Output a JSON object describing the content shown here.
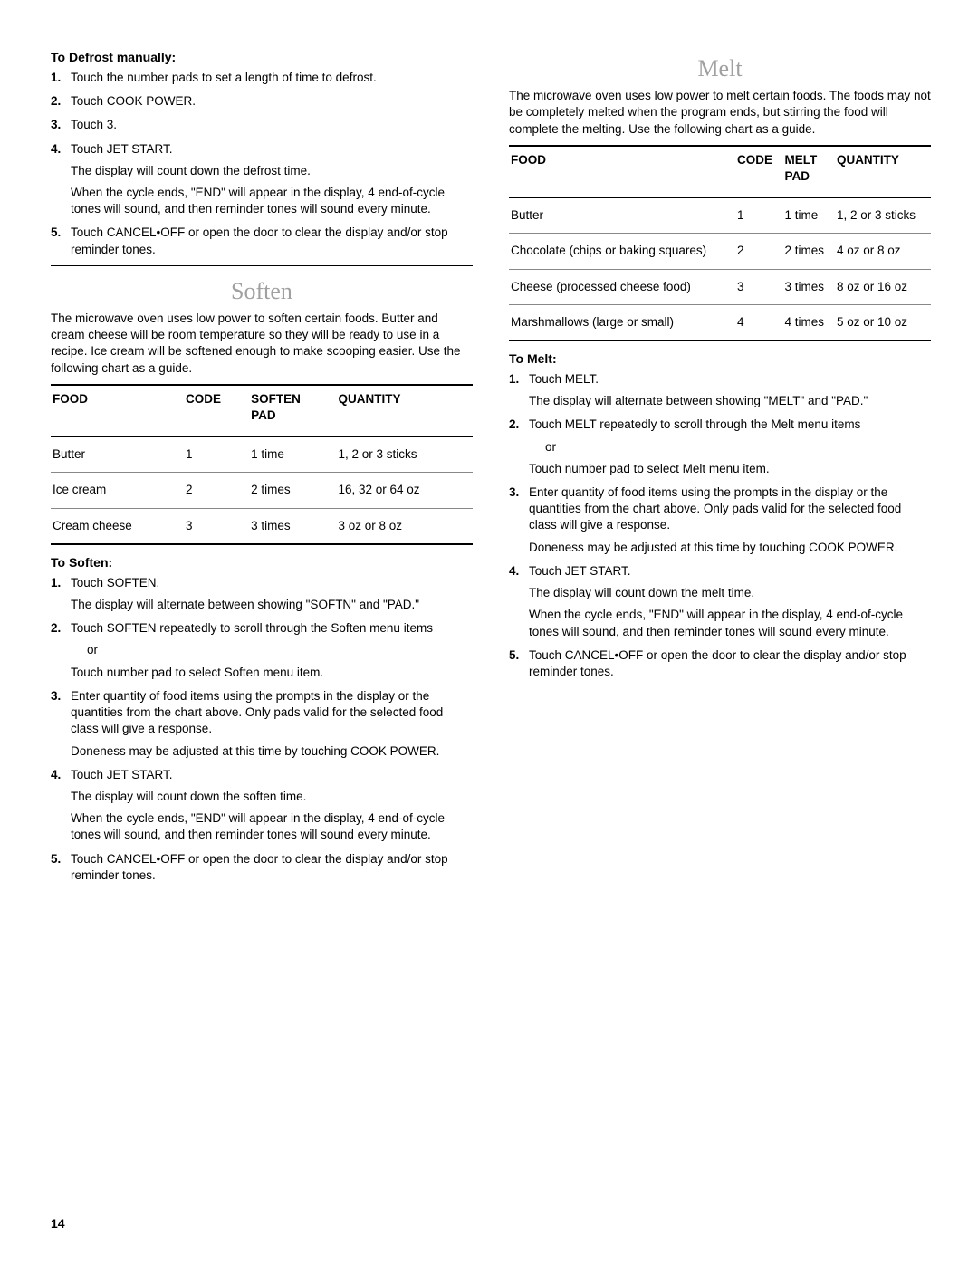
{
  "left": {
    "defrost": {
      "heading": "To Defrost manually:",
      "steps": [
        {
          "text": "Touch the number pads to set a length of time to defrost."
        },
        {
          "text": "Touch COOK POWER."
        },
        {
          "text": "Touch 3."
        },
        {
          "text": "Touch JET START.",
          "subs": [
            "The display will count down the defrost time.",
            "When the cycle ends, \"END\" will appear in the display, 4 end-of-cycle tones will sound, and then reminder tones will sound every minute."
          ]
        },
        {
          "text": "Touch CANCEL•OFF or open the door to clear the display and/or stop reminder tones."
        }
      ]
    },
    "soften": {
      "title": "Soften",
      "intro": "The microwave oven uses low power to soften certain foods. Butter and cream cheese will be room temperature so they will be ready to use in a recipe. Ice cream will be softened enough to make scooping easier. Use the following chart as a guide.",
      "table": {
        "headers": [
          "FOOD",
          "CODE",
          "SOFTEN PAD",
          "QUANTITY"
        ],
        "rows": [
          [
            "Butter",
            "1",
            "1 time",
            "1, 2 or 3 sticks"
          ],
          [
            "Ice cream",
            "2",
            "2 times",
            "16, 32 or 64 oz"
          ],
          [
            "Cream cheese",
            "3",
            "3 times",
            "3 oz or 8 oz"
          ]
        ]
      },
      "proc_heading": "To Soften:",
      "steps": [
        {
          "text": "Touch SOFTEN.",
          "subs": [
            "The display will alternate between showing \"SOFTN\" and \"PAD.\""
          ]
        },
        {
          "text": "Touch SOFTEN repeatedly to scroll through the Soften menu items",
          "or": "or",
          "subs": [
            "Touch number pad to select Soften menu item."
          ]
        },
        {
          "text": "Enter quantity of food items using the prompts in the display or the quantities from the chart above. Only pads valid for the selected food class will give a response.",
          "subs": [
            "Doneness may be adjusted at this time by touching COOK POWER."
          ]
        },
        {
          "text": "Touch JET START.",
          "subs": [
            "The display will count down the soften time.",
            "When the cycle ends, \"END\" will appear in the display, 4 end-of-cycle tones will sound, and then reminder tones will sound every minute."
          ]
        },
        {
          "text": "Touch CANCEL•OFF or open the door to clear the display and/or stop reminder tones."
        }
      ]
    }
  },
  "right": {
    "melt": {
      "title": "Melt",
      "intro": "The microwave oven uses low power to melt certain foods. The foods may not be completely melted when the program ends, but stirring the food will complete the melting. Use the following chart as a guide.",
      "table": {
        "headers": [
          "FOOD",
          "CODE",
          "MELT PAD",
          "QUANTITY"
        ],
        "rows": [
          [
            "Butter",
            "1",
            "1 time",
            "1, 2 or 3 sticks"
          ],
          [
            "Chocolate (chips or baking squares)",
            "2",
            "2 times",
            "4 oz or 8 oz"
          ],
          [
            "Cheese (processed cheese food)",
            "3",
            "3 times",
            "8 oz or 16 oz"
          ],
          [
            "Marshmallows (large or small)",
            "4",
            "4 times",
            "5 oz or 10 oz"
          ]
        ]
      },
      "proc_heading": "To Melt:",
      "steps": [
        {
          "text": "Touch MELT.",
          "subs": [
            "The display will alternate between showing \"MELT\" and \"PAD.\""
          ]
        },
        {
          "text": "Touch MELT repeatedly to scroll through the Melt menu items",
          "or": "or",
          "subs": [
            "Touch number pad to select Melt menu item."
          ]
        },
        {
          "text": "Enter quantity of food items using the prompts in the display or the quantities from the chart above. Only pads valid for the selected food class will give a response.",
          "subs": [
            "Doneness may be adjusted at this time by touching COOK POWER."
          ]
        },
        {
          "text": "Touch JET START.",
          "subs": [
            "The display will count down the melt time.",
            "When the cycle ends, \"END\" will appear in the display, 4 end-of-cycle tones will sound, and then reminder tones will sound every minute."
          ]
        },
        {
          "text": "Touch CANCEL•OFF or open the door to clear the display and/or stop reminder tones."
        }
      ]
    }
  },
  "page_number": "14"
}
